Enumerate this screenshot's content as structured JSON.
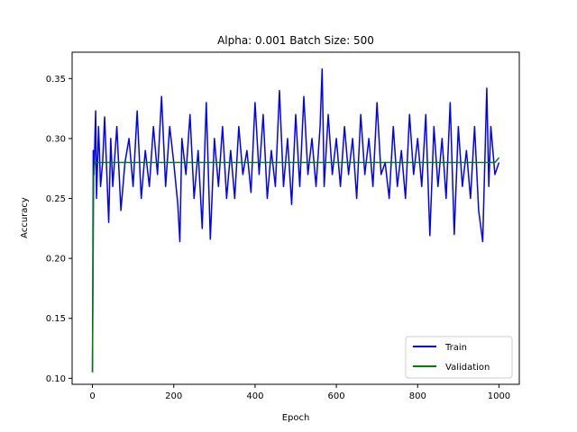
{
  "chart_data": {
    "type": "line",
    "title": "Alpha: 0.001 Batch Size: 500",
    "xlabel": "Epoch",
    "ylabel": "Accuracy",
    "xlim": [
      -50,
      1050
    ],
    "ylim": [
      0.095,
      0.372
    ],
    "xticks": [
      0,
      200,
      400,
      600,
      800,
      1000
    ],
    "xtick_labels": [
      "0",
      "200",
      "400",
      "600",
      "800",
      "1000"
    ],
    "yticks": [
      0.1,
      0.15,
      0.2,
      0.25,
      0.3,
      0.35
    ],
    "ytick_labels": [
      "0.10",
      "0.15",
      "0.20",
      "0.25",
      "0.30",
      "0.35"
    ],
    "grid": false,
    "legend_position": "lower-right",
    "series": [
      {
        "name": "Train",
        "color": "#0000ff",
        "x": [
          0,
          2,
          4,
          6,
          8,
          10,
          15,
          20,
          25,
          30,
          40,
          45,
          50,
          60,
          70,
          80,
          90,
          100,
          110,
          120,
          130,
          140,
          150,
          160,
          170,
          180,
          190,
          200,
          210,
          215,
          220,
          230,
          240,
          250,
          260,
          270,
          280,
          290,
          300,
          310,
          320,
          330,
          340,
          350,
          360,
          370,
          380,
          390,
          400,
          410,
          420,
          430,
          440,
          450,
          460,
          470,
          480,
          490,
          500,
          510,
          520,
          530,
          540,
          550,
          560,
          565,
          570,
          580,
          590,
          600,
          610,
          620,
          630,
          640,
          650,
          660,
          670,
          680,
          690,
          700,
          710,
          720,
          730,
          740,
          750,
          760,
          770,
          780,
          790,
          800,
          810,
          820,
          830,
          840,
          850,
          860,
          870,
          880,
          890,
          900,
          910,
          920,
          930,
          940,
          945,
          950,
          960,
          970,
          975,
          980,
          990,
          1000
        ],
        "values": [
          0.105,
          0.29,
          0.27,
          0.3,
          0.323,
          0.25,
          0.31,
          0.26,
          0.28,
          0.318,
          0.23,
          0.3,
          0.26,
          0.31,
          0.24,
          0.28,
          0.3,
          0.26,
          0.323,
          0.25,
          0.29,
          0.26,
          0.31,
          0.27,
          0.335,
          0.26,
          0.31,
          0.28,
          0.245,
          0.214,
          0.3,
          0.27,
          0.32,
          0.25,
          0.29,
          0.225,
          0.33,
          0.216,
          0.3,
          0.26,
          0.31,
          0.25,
          0.29,
          0.25,
          0.31,
          0.27,
          0.29,
          0.255,
          0.33,
          0.27,
          0.32,
          0.25,
          0.29,
          0.26,
          0.34,
          0.26,
          0.3,
          0.245,
          0.32,
          0.26,
          0.335,
          0.27,
          0.3,
          0.26,
          0.31,
          0.358,
          0.26,
          0.32,
          0.27,
          0.3,
          0.26,
          0.31,
          0.27,
          0.3,
          0.25,
          0.32,
          0.27,
          0.3,
          0.26,
          0.33,
          0.27,
          0.28,
          0.25,
          0.31,
          0.26,
          0.29,
          0.25,
          0.32,
          0.27,
          0.3,
          0.26,
          0.32,
          0.219,
          0.31,
          0.26,
          0.3,
          0.25,
          0.33,
          0.22,
          0.31,
          0.26,
          0.29,
          0.25,
          0.31,
          0.275,
          0.24,
          0.214,
          0.342,
          0.26,
          0.31,
          0.27,
          0.28
        ]
      },
      {
        "name": "Validation",
        "color": "#008000",
        "x": [
          0,
          3,
          6,
          10,
          50,
          100,
          200,
          300,
          400,
          500,
          600,
          700,
          800,
          900,
          990,
          1000
        ],
        "values": [
          0.105,
          0.27,
          0.28,
          0.28,
          0.28,
          0.28,
          0.28,
          0.28,
          0.28,
          0.28,
          0.28,
          0.28,
          0.28,
          0.28,
          0.28,
          0.284
        ]
      }
    ]
  }
}
